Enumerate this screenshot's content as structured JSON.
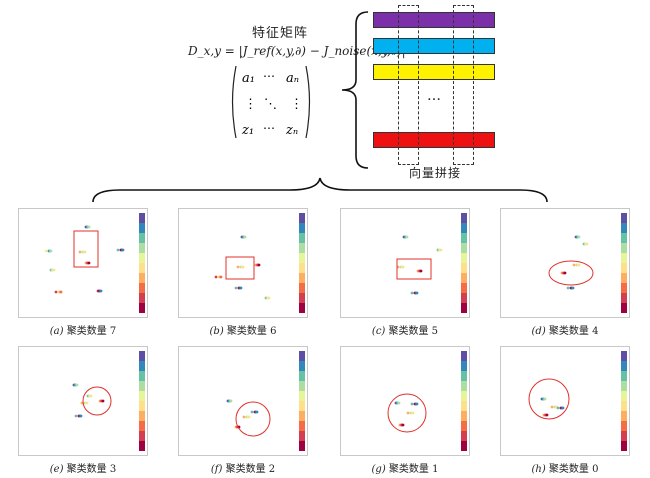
{
  "header": {
    "title": "特征矩阵",
    "formula": "D_x,y = |J_ref(x,y,∂) − J_noise(x,y,∂)|",
    "matrix": {
      "top_left": "a₁",
      "top_mid": "⋯",
      "top_right": "aₙ",
      "mid_left": "⋮",
      "mid_mid": "⋱",
      "mid_right": "⋮",
      "bot_left": "z₁",
      "bot_mid": "⋯",
      "bot_right": "zₙ"
    },
    "ellipsis": "…",
    "concat_label": "向量拼接"
  },
  "colors": {
    "purple": "#7b2fa8",
    "cyan": "#00b0ef",
    "yellow": "#fff200",
    "red": "#ee1111",
    "highlight": "#e0302a"
  },
  "panels": [
    {
      "id": "a",
      "label": "(a)",
      "caption": "聚类数量 7",
      "marker": "box"
    },
    {
      "id": "b",
      "label": "(b)",
      "caption": "聚类数量 6",
      "marker": "box"
    },
    {
      "id": "c",
      "label": "(c)",
      "caption": "聚类数量 5",
      "marker": "box"
    },
    {
      "id": "d",
      "label": "(d)",
      "caption": "聚类数量 4",
      "marker": "ellipse"
    },
    {
      "id": "e",
      "label": "(e)",
      "caption": "聚类数量 3",
      "marker": "circle"
    },
    {
      "id": "f",
      "label": "(f)",
      "caption": "聚类数量 2",
      "marker": "circle"
    },
    {
      "id": "g",
      "label": "(g)",
      "caption": "聚类数量 1",
      "marker": "circle"
    },
    {
      "id": "h",
      "label": "(h)",
      "caption": "聚类数量 0",
      "marker": "circle"
    }
  ]
}
